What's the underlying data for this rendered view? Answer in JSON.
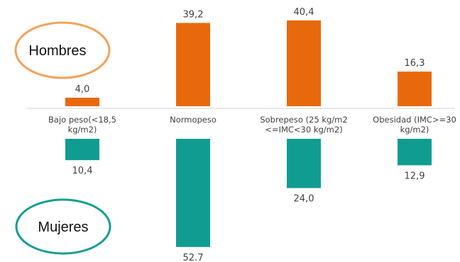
{
  "chart_data": {
    "type": "bar",
    "categories": [
      [
        "Bajo peso(<18,5",
        "kg/m2)"
      ],
      [
        "Normopeso"
      ],
      [
        "Sobrepeso (25 kg/m2",
        "<=IMC<30 kg/m2)"
      ],
      [
        "Obesidad (IMC>=30",
        "kg/m2)"
      ]
    ],
    "series": [
      {
        "name": "Hombres",
        "color": "#E8690B",
        "values": [
          4.0,
          39.2,
          40.4,
          16.3
        ],
        "value_labels": [
          "4,0",
          "39,2",
          "40,4",
          "16,3"
        ],
        "direction": "up"
      },
      {
        "name": "Mujeres",
        "color": "#119C92",
        "values": [
          10.4,
          52.7,
          24.0,
          12.9
        ],
        "value_labels": [
          "10,4",
          "52.7",
          "24,0",
          "12,9"
        ],
        "direction": "down"
      }
    ],
    "legend": [
      {
        "label": "Hombres",
        "outline_color": "#F4A259",
        "placement": "left-top"
      },
      {
        "label": "Mujeres",
        "outline_color": "#139E94",
        "placement": "left-bottom"
      }
    ],
    "grid": false
  }
}
